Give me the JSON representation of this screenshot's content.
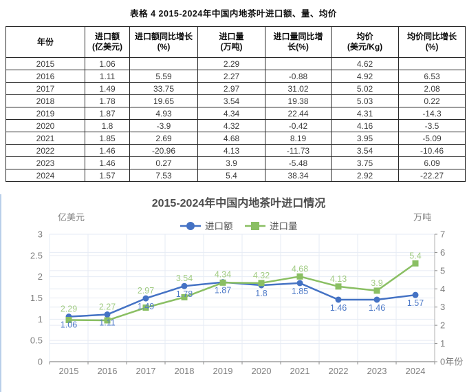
{
  "table": {
    "caption": "表格 4 2015-2024年中国内地茶叶进口额、量、均价",
    "columns": [
      {
        "line1": "年份",
        "line2": ""
      },
      {
        "line1": "进口额",
        "line2": "(亿美元)"
      },
      {
        "line1": "进口额同比增长",
        "line2": "(%)"
      },
      {
        "line1": "进口量",
        "line2": "(万吨)"
      },
      {
        "line1": "进口量同比增",
        "line2": "长(%)"
      },
      {
        "line1": "均价",
        "line2": "(美元/Kg)"
      },
      {
        "line1": "均价同比增长",
        "line2": "(%)"
      }
    ],
    "rows": [
      [
        "2015",
        "1.06",
        "",
        "2.29",
        "",
        "4.62",
        ""
      ],
      [
        "2016",
        "1.11",
        "5.59",
        "2.27",
        "-0.88",
        "4.92",
        "6.53"
      ],
      [
        "2017",
        "1.49",
        "33.75",
        "2.97",
        "31.02",
        "5.02",
        "2.08"
      ],
      [
        "2018",
        "1.78",
        "19.65",
        "3.54",
        "19.38",
        "5.03",
        "0.22"
      ],
      [
        "2019",
        "1.87",
        "4.93",
        "4.34",
        "22.44",
        "4.31",
        "-14.3"
      ],
      [
        "2020",
        "1.8",
        "-3.9",
        "4.32",
        "-0.42",
        "4.16",
        "-3.5"
      ],
      [
        "2021",
        "1.85",
        "2.69",
        "4.68",
        "8.19",
        "3.95",
        "-5.09"
      ],
      [
        "2022",
        "1.46",
        "-20.96",
        "4.13",
        "-11.73",
        "3.54",
        "-10.46"
      ],
      [
        "2023",
        "1.46",
        "0.27",
        "3.9",
        "-5.48",
        "3.75",
        "6.09"
      ],
      [
        "2024",
        "1.57",
        "7.53",
        "5.4",
        "38.34",
        "2.92",
        "-22.27"
      ]
    ]
  },
  "chart_data": {
    "type": "line",
    "title": "2015-2024年中国内地茶叶进口情况",
    "categories": [
      "2015",
      "2016",
      "2017",
      "2018",
      "2019",
      "2020",
      "2021",
      "2022",
      "2023",
      "2024"
    ],
    "series": [
      {
        "name": "进口额",
        "axis": "left",
        "marker": "circle",
        "color": "#4472c4",
        "label_color": "#4d79c7",
        "values": [
          1.06,
          1.11,
          1.49,
          1.78,
          1.87,
          1.8,
          1.85,
          1.46,
          1.46,
          1.57
        ]
      },
      {
        "name": "进口量",
        "axis": "right",
        "marker": "square",
        "color": "#8abf63",
        "label_color": "#a2cc84",
        "values": [
          2.29,
          2.27,
          2.97,
          3.54,
          4.34,
          4.32,
          4.68,
          4.13,
          3.9,
          5.4
        ]
      }
    ],
    "left_axis": {
      "title": "亿美元",
      "min": 0,
      "max": 3,
      "step": 0.5,
      "tick_labels": [
        "3",
        "2.5",
        "2",
        "1.5",
        "1",
        "0.5",
        "0"
      ]
    },
    "right_axis": {
      "title": "万吨",
      "min": 0,
      "max": 7,
      "step": 1,
      "tick_labels": [
        "7",
        "6",
        "5",
        "4",
        "3",
        "2",
        "1",
        "0"
      ]
    },
    "x_axis_title": "年份",
    "legend_position": "top-center",
    "grid": true,
    "colors": {
      "grid_line": "#e6ebf4",
      "axis_line": "#8c8c8c",
      "tick_text": "#7f7f7f",
      "title_text": "#4d4d4d",
      "legend_text": "#555555"
    }
  }
}
